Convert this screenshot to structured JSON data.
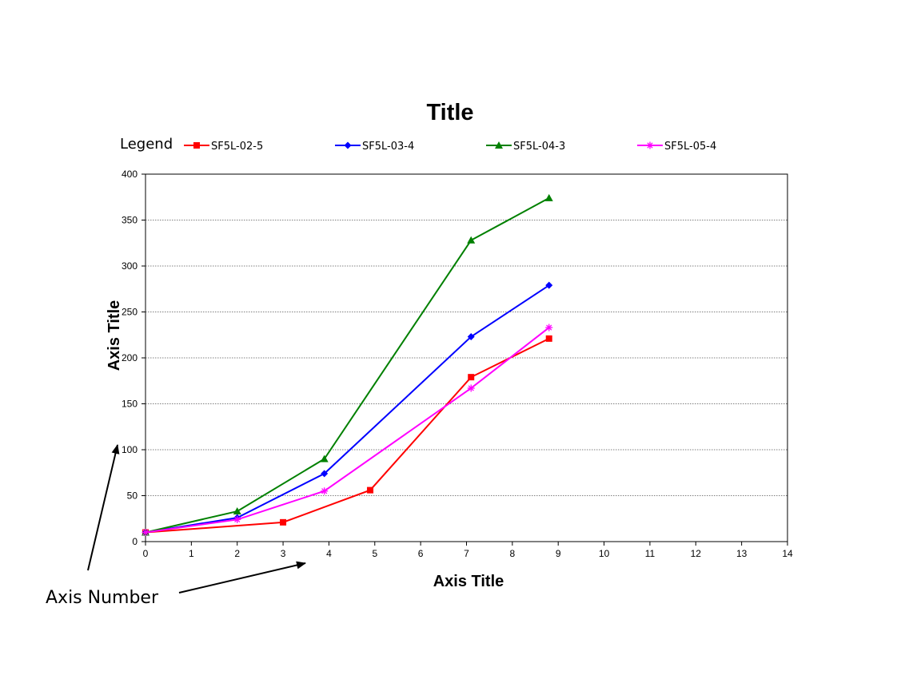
{
  "chart_data": {
    "type": "line",
    "title": "Title",
    "xlabel": "Axis Title",
    "ylabel": "Axis Title",
    "xlim": [
      0,
      14
    ],
    "ylim": [
      0,
      400
    ],
    "xticks": [
      0,
      1,
      2,
      3,
      4,
      5,
      6,
      7,
      8,
      9,
      10,
      11,
      12,
      13,
      14
    ],
    "yticks": [
      0,
      50,
      100,
      150,
      200,
      250,
      300,
      350,
      400
    ],
    "grid": "horizontal-dashed",
    "legend_position": "top",
    "legend_caption": "Legend",
    "series": [
      {
        "name": "SF5L-02-5",
        "color": "#ff0000",
        "marker": "square",
        "x": [
          0,
          3,
          4.9,
          7.1,
          8.8
        ],
        "y": [
          10,
          21,
          56,
          179,
          221
        ]
      },
      {
        "name": "SF5L-03-4",
        "color": "#0000ff",
        "marker": "diamond",
        "x": [
          0,
          2,
          3.9,
          7.1,
          8.8
        ],
        "y": [
          10,
          26,
          74,
          223,
          279
        ]
      },
      {
        "name": "SF5L-04-3",
        "color": "#008000",
        "marker": "triangle",
        "x": [
          0,
          2,
          3.9,
          7.1,
          8.8
        ],
        "y": [
          10,
          33,
          90,
          328,
          374
        ]
      },
      {
        "name": "SF5L-05-4",
        "color": "#ff00ff",
        "marker": "asterisk",
        "x": [
          0,
          2,
          3.9,
          7.1,
          8.8
        ],
        "y": [
          10,
          24,
          55,
          167,
          233
        ]
      }
    ]
  },
  "annotation": {
    "label": "Axis Number"
  }
}
